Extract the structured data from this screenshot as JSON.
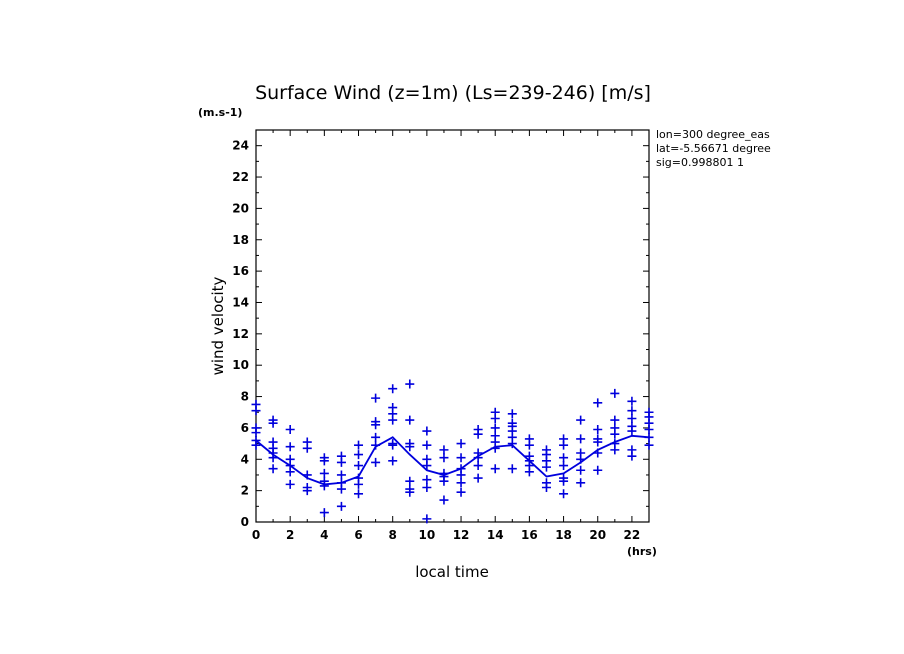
{
  "chart_data": {
    "type": "scatter",
    "title": "Surface Wind (z=1m) (Ls=239-246) [m/s]",
    "y_unit": "(m.s-1)",
    "x_unit": "(hrs)",
    "xlabel": "local time",
    "ylabel": "wind velocity",
    "xlim": [
      0,
      23
    ],
    "ylim": [
      0,
      25
    ],
    "x_ticks": [
      0,
      2,
      4,
      6,
      8,
      10,
      12,
      14,
      16,
      18,
      20,
      22
    ],
    "y_ticks": [
      0,
      2,
      4,
      6,
      8,
      10,
      12,
      14,
      16,
      18,
      20,
      22,
      24
    ],
    "grid": false,
    "info_lines": [
      "lon=300 degree_eas",
      "lat=-5.56671 degree",
      "sig=0.998801 1"
    ],
    "colors": {
      "series": "#0000dd",
      "axis": "#000000"
    },
    "series": [
      {
        "marker": "+",
        "points": [
          [
            0,
            7.5
          ],
          [
            0,
            7.1
          ],
          [
            0,
            6.0
          ],
          [
            0,
            5.7
          ],
          [
            0,
            5.2
          ],
          [
            0,
            4.9
          ],
          [
            1,
            6.5
          ],
          [
            1,
            6.3
          ],
          [
            1,
            5.1
          ],
          [
            1,
            4.7
          ],
          [
            1,
            4.4
          ],
          [
            1,
            4.1
          ],
          [
            1,
            3.4
          ],
          [
            2,
            5.9
          ],
          [
            2,
            4.8
          ],
          [
            2,
            4.0
          ],
          [
            2,
            3.6
          ],
          [
            2,
            3.2
          ],
          [
            2,
            2.4
          ],
          [
            3,
            5.1
          ],
          [
            3,
            4.7
          ],
          [
            3,
            3.0
          ],
          [
            3,
            2.2
          ],
          [
            3,
            2.0
          ],
          [
            4,
            4.1
          ],
          [
            4,
            3.9
          ],
          [
            4,
            3.1
          ],
          [
            4,
            2.6
          ],
          [
            4,
            2.3
          ],
          [
            4,
            0.6
          ],
          [
            5,
            4.2
          ],
          [
            5,
            3.8
          ],
          [
            5,
            3.0
          ],
          [
            5,
            2.5
          ],
          [
            5,
            2.1
          ],
          [
            5,
            1.0
          ],
          [
            6,
            4.9
          ],
          [
            6,
            4.3
          ],
          [
            6,
            3.6
          ],
          [
            6,
            2.8
          ],
          [
            6,
            2.4
          ],
          [
            6,
            1.8
          ],
          [
            7,
            7.9
          ],
          [
            7,
            6.4
          ],
          [
            7,
            6.2
          ],
          [
            7,
            5.4
          ],
          [
            7,
            4.9
          ],
          [
            7,
            3.8
          ],
          [
            8,
            8.5
          ],
          [
            8,
            7.3
          ],
          [
            8,
            6.9
          ],
          [
            8,
            6.5
          ],
          [
            8,
            5.0
          ],
          [
            8,
            4.9
          ],
          [
            8,
            3.9
          ],
          [
            9,
            8.8
          ],
          [
            9,
            6.5
          ],
          [
            9,
            5.0
          ],
          [
            9,
            4.8
          ],
          [
            9,
            2.6
          ],
          [
            9,
            2.1
          ],
          [
            9,
            1.9
          ],
          [
            10,
            5.8
          ],
          [
            10,
            4.9
          ],
          [
            10,
            4.0
          ],
          [
            10,
            3.6
          ],
          [
            10,
            2.7
          ],
          [
            10,
            2.2
          ],
          [
            10,
            0.2
          ],
          [
            11,
            4.6
          ],
          [
            11,
            4.1
          ],
          [
            11,
            3.1
          ],
          [
            11,
            2.9
          ],
          [
            11,
            2.6
          ],
          [
            11,
            1.4
          ],
          [
            12,
            5.0
          ],
          [
            12,
            4.1
          ],
          [
            12,
            3.4
          ],
          [
            12,
            3.0
          ],
          [
            12,
            2.5
          ],
          [
            12,
            1.9
          ],
          [
            13,
            5.9
          ],
          [
            13,
            5.6
          ],
          [
            13,
            4.4
          ],
          [
            13,
            4.1
          ],
          [
            13,
            3.6
          ],
          [
            13,
            2.8
          ],
          [
            14,
            7.0
          ],
          [
            14,
            6.6
          ],
          [
            14,
            6.0
          ],
          [
            14,
            5.5
          ],
          [
            14,
            5.1
          ],
          [
            14,
            4.7
          ],
          [
            14,
            3.4
          ],
          [
            15,
            6.9
          ],
          [
            15,
            6.3
          ],
          [
            15,
            6.1
          ],
          [
            15,
            5.8
          ],
          [
            15,
            5.4
          ],
          [
            15,
            5.0
          ],
          [
            15,
            3.4
          ],
          [
            16,
            5.3
          ],
          [
            16,
            4.9
          ],
          [
            16,
            4.2
          ],
          [
            16,
            3.9
          ],
          [
            16,
            3.6
          ],
          [
            16,
            3.2
          ],
          [
            17,
            4.6
          ],
          [
            17,
            4.3
          ],
          [
            17,
            3.9
          ],
          [
            17,
            3.5
          ],
          [
            17,
            2.5
          ],
          [
            17,
            2.2
          ],
          [
            18,
            5.3
          ],
          [
            18,
            4.9
          ],
          [
            18,
            4.1
          ],
          [
            18,
            3.6
          ],
          [
            18,
            2.8
          ],
          [
            18,
            2.6
          ],
          [
            18,
            1.8
          ],
          [
            19,
            6.5
          ],
          [
            19,
            5.3
          ],
          [
            19,
            4.4
          ],
          [
            19,
            4.0
          ],
          [
            19,
            3.3
          ],
          [
            19,
            2.5
          ],
          [
            20,
            7.6
          ],
          [
            20,
            5.9
          ],
          [
            20,
            5.3
          ],
          [
            20,
            5.1
          ],
          [
            20,
            4.4
          ],
          [
            20,
            3.3
          ],
          [
            21,
            8.2
          ],
          [
            21,
            6.5
          ],
          [
            21,
            6.0
          ],
          [
            21,
            5.6
          ],
          [
            21,
            5.0
          ],
          [
            21,
            4.6
          ],
          [
            22,
            7.7
          ],
          [
            22,
            7.1
          ],
          [
            22,
            6.6
          ],
          [
            22,
            6.1
          ],
          [
            22,
            5.8
          ],
          [
            22,
            4.6
          ],
          [
            22,
            4.2
          ],
          [
            23,
            7.0
          ],
          [
            23,
            6.7
          ],
          [
            23,
            6.3
          ],
          [
            23,
            5.9
          ],
          [
            23,
            5.4
          ],
          [
            23,
            4.9
          ]
        ]
      },
      {
        "marker": "line",
        "x": [
          0,
          1,
          2,
          3,
          4,
          5,
          6,
          7,
          8,
          9,
          10,
          11,
          12,
          13,
          14,
          15,
          16,
          17,
          18,
          19,
          20,
          21,
          22,
          23
        ],
        "values": [
          5.2,
          4.3,
          3.6,
          2.8,
          2.4,
          2.5,
          2.9,
          4.8,
          5.4,
          4.3,
          3.3,
          3.0,
          3.4,
          4.2,
          4.8,
          4.9,
          3.9,
          2.9,
          3.1,
          3.8,
          4.6,
          5.1,
          5.5,
          5.4
        ]
      }
    ]
  }
}
